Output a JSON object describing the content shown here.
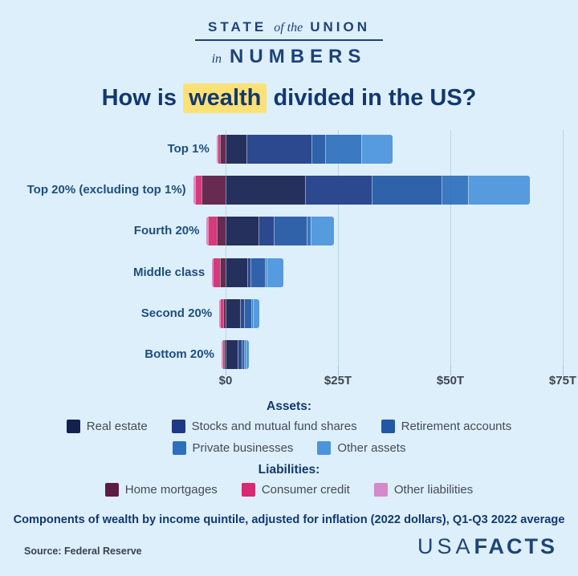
{
  "header": {
    "line1_left": "STATE",
    "line1_mid": "of the",
    "line1_right": "UNION",
    "line2_left": "in",
    "line2_right": "NUMBERS"
  },
  "title": {
    "pre": "How is",
    "highlight": "wealth",
    "post": "divided in the US?"
  },
  "chart_data": {
    "type": "bar",
    "orientation": "horizontal",
    "stacked": true,
    "unit": "trillions of 2022 dollars",
    "title": "How is wealth divided in the US?",
    "categories": [
      "Top 1%",
      "Top 20% (excluding top 1%)",
      "Fourth 20%",
      "Middle class",
      "Second 20%",
      "Bottom 20%"
    ],
    "asset_series": [
      {
        "name": "Real estate",
        "color": "#16204f",
        "values": [
          4.6,
          17.7,
          7.4,
          4.8,
          3.3,
          2.7
        ]
      },
      {
        "name": "Stocks and mutual fund shares",
        "color": "#1e3a85",
        "values": [
          14.6,
          14.8,
          3.3,
          0.7,
          0.9,
          0.9
        ]
      },
      {
        "name": "Retirement accounts",
        "color": "#2257a4",
        "values": [
          2.9,
          15.5,
          7.4,
          3.3,
          1.5,
          0.6
        ]
      },
      {
        "name": "Private businesses",
        "color": "#2e6fbd",
        "values": [
          8.0,
          5.9,
          0.9,
          0.4,
          0.3,
          0.2
        ]
      },
      {
        "name": "Other assets",
        "color": "#4a94dc",
        "values": [
          7.1,
          13.8,
          5.1,
          3.7,
          1.5,
          0.8
        ]
      }
    ],
    "liability_series": [
      {
        "name": "Home mortgages",
        "color": "#5d1b44",
        "values": [
          1.2,
          5.4,
          2.0,
          1.2,
          0.6,
          0.3
        ]
      },
      {
        "name": "Consumer credit",
        "color": "#d62a72",
        "values": [
          0.5,
          1.3,
          1.9,
          1.6,
          0.7,
          0.5
        ]
      },
      {
        "name": "Other liabilities",
        "color": "#d489cb",
        "values": [
          0.3,
          0.5,
          0.3,
          0.2,
          0.1,
          0.1
        ]
      }
    ],
    "x_axis": {
      "tick_labels": [
        "$0",
        "$25T",
        "$50T",
        "$75T"
      ],
      "tick_values": [
        0,
        25,
        50,
        75
      ],
      "xlim": [
        -8,
        78
      ]
    },
    "legend_position": "bottom",
    "grid": "vertical"
  },
  "legend": {
    "assets_heading": "Assets:",
    "liabilities_heading": "Liabilities:"
  },
  "footer": {
    "note": "Components of wealth by income quintile, adjusted for inflation (2022 dollars), Q1-Q3 2022 average",
    "source": "Source: Federal Reserve",
    "brand_usa": "USA",
    "brand_facts": "FACTS"
  }
}
